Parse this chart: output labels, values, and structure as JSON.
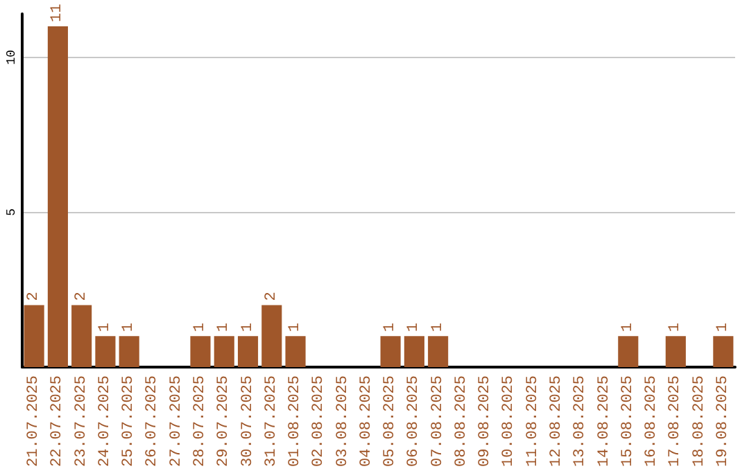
{
  "chart_data": {
    "type": "bar",
    "categories": [
      "21.07.2025",
      "22.07.2025",
      "23.07.2025",
      "24.07.2025",
      "25.07.2025",
      "26.07.2025",
      "27.07.2025",
      "28.07.2025",
      "29.07.2025",
      "30.07.2025",
      "31.07.2025",
      "01.08.2025",
      "02.08.2025",
      "03.08.2025",
      "04.08.2025",
      "05.08.2025",
      "06.08.2025",
      "07.08.2025",
      "08.08.2025",
      "09.08.2025",
      "10.08.2025",
      "11.08.2025",
      "12.08.2025",
      "13.08.2025",
      "14.08.2025",
      "15.08.2025",
      "16.08.2025",
      "17.08.2025",
      "18.08.2025",
      "19.08.2025"
    ],
    "values": [
      2,
      11,
      2,
      1,
      1,
      0,
      0,
      1,
      1,
      1,
      2,
      1,
      0,
      0,
      0,
      1,
      1,
      1,
      0,
      0,
      0,
      0,
      0,
      0,
      0,
      1,
      0,
      1,
      0,
      1
    ],
    "value_labels": [
      "2",
      "11",
      "2",
      "1",
      "1",
      null,
      null,
      "1",
      "1",
      "1",
      "2",
      "1",
      null,
      null,
      null,
      "1",
      "1",
      "1",
      null,
      null,
      null,
      null,
      null,
      null,
      null,
      "1",
      null,
      "1",
      null,
      "1"
    ],
    "color": "#a0572a",
    "ylim": [
      0,
      11.4
    ],
    "yticks": [
      5,
      10
    ],
    "grid": "y"
  }
}
